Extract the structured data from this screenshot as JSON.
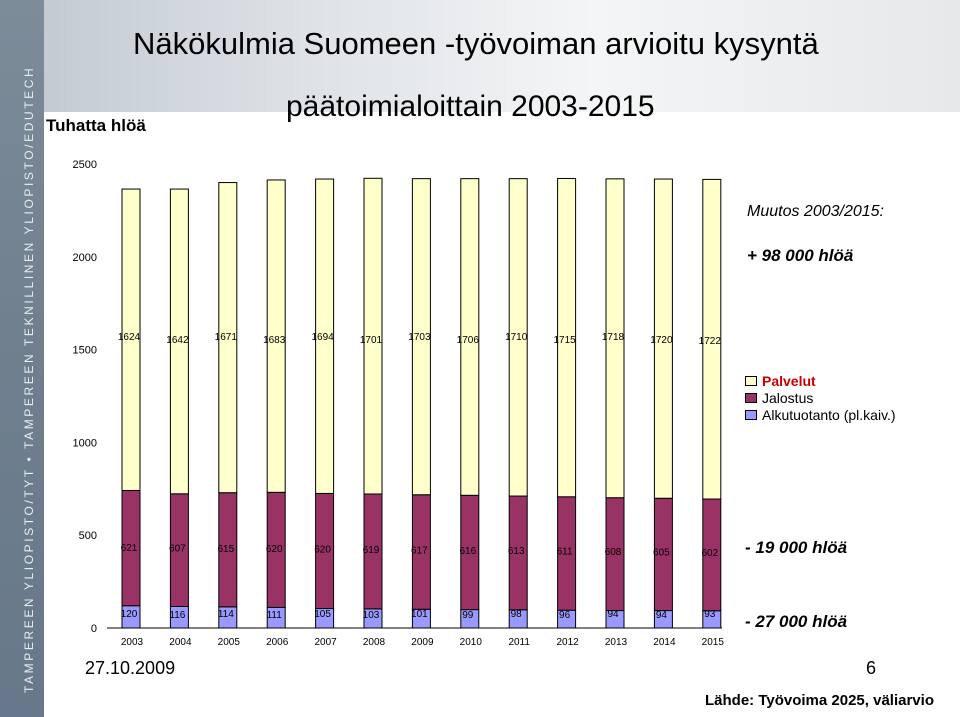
{
  "sidebar": {
    "text": "TAMPEREEN YLIOPISTO/TYT • TAMPEREEN TEKNILLINEN YLIOPISTO/EDUTECH"
  },
  "slide": {
    "title": "Näkökulmia Suomeen -työvoiman arvioitu kysyntä",
    "subtitle": "päätoimialoittain 2003-2015",
    "date": "27.10.2009",
    "page_number": "6",
    "source": "Lähde: Työvoima 2025, väliarvio",
    "muutos_label": "Muutos 2003/2015:",
    "annotations": {
      "services_change": "+ 98 000 hlöä",
      "processing_change": "- 19 000 hlöä",
      "primary_change": "- 27 000 hlöä"
    }
  },
  "chart_data": {
    "type": "bar",
    "stacked": true,
    "categories": [
      "2003",
      "2004",
      "2005",
      "2006",
      "2007",
      "2008",
      "2009",
      "2010",
      "2011",
      "2012",
      "2013",
      "2014",
      "2015"
    ],
    "ylabel": "Tuhatta hlöä",
    "ylim": [
      0,
      2500
    ],
    "yticks": [
      0,
      500,
      1000,
      1500,
      2000,
      2500
    ],
    "grid": false,
    "legend_position": "right",
    "series": [
      {
        "name": "Alkutuotanto (pl.kaiv.)",
        "color": "#9999ff",
        "values": [
          120,
          116,
          114,
          111,
          105,
          103,
          101,
          99,
          98,
          96,
          94,
          94,
          93
        ]
      },
      {
        "name": "Jalostus",
        "color": "#993366",
        "values": [
          621,
          607,
          615,
          620,
          620,
          619,
          617,
          616,
          613,
          611,
          608,
          605,
          602
        ]
      },
      {
        "name": "Palvelut",
        "color": "#ffffcc",
        "legend_color": "#cc0000",
        "values": [
          1624,
          1642,
          1671,
          1683,
          1694,
          1701,
          1703,
          1706,
          1710,
          1715,
          1718,
          1720,
          1722
        ]
      }
    ]
  }
}
